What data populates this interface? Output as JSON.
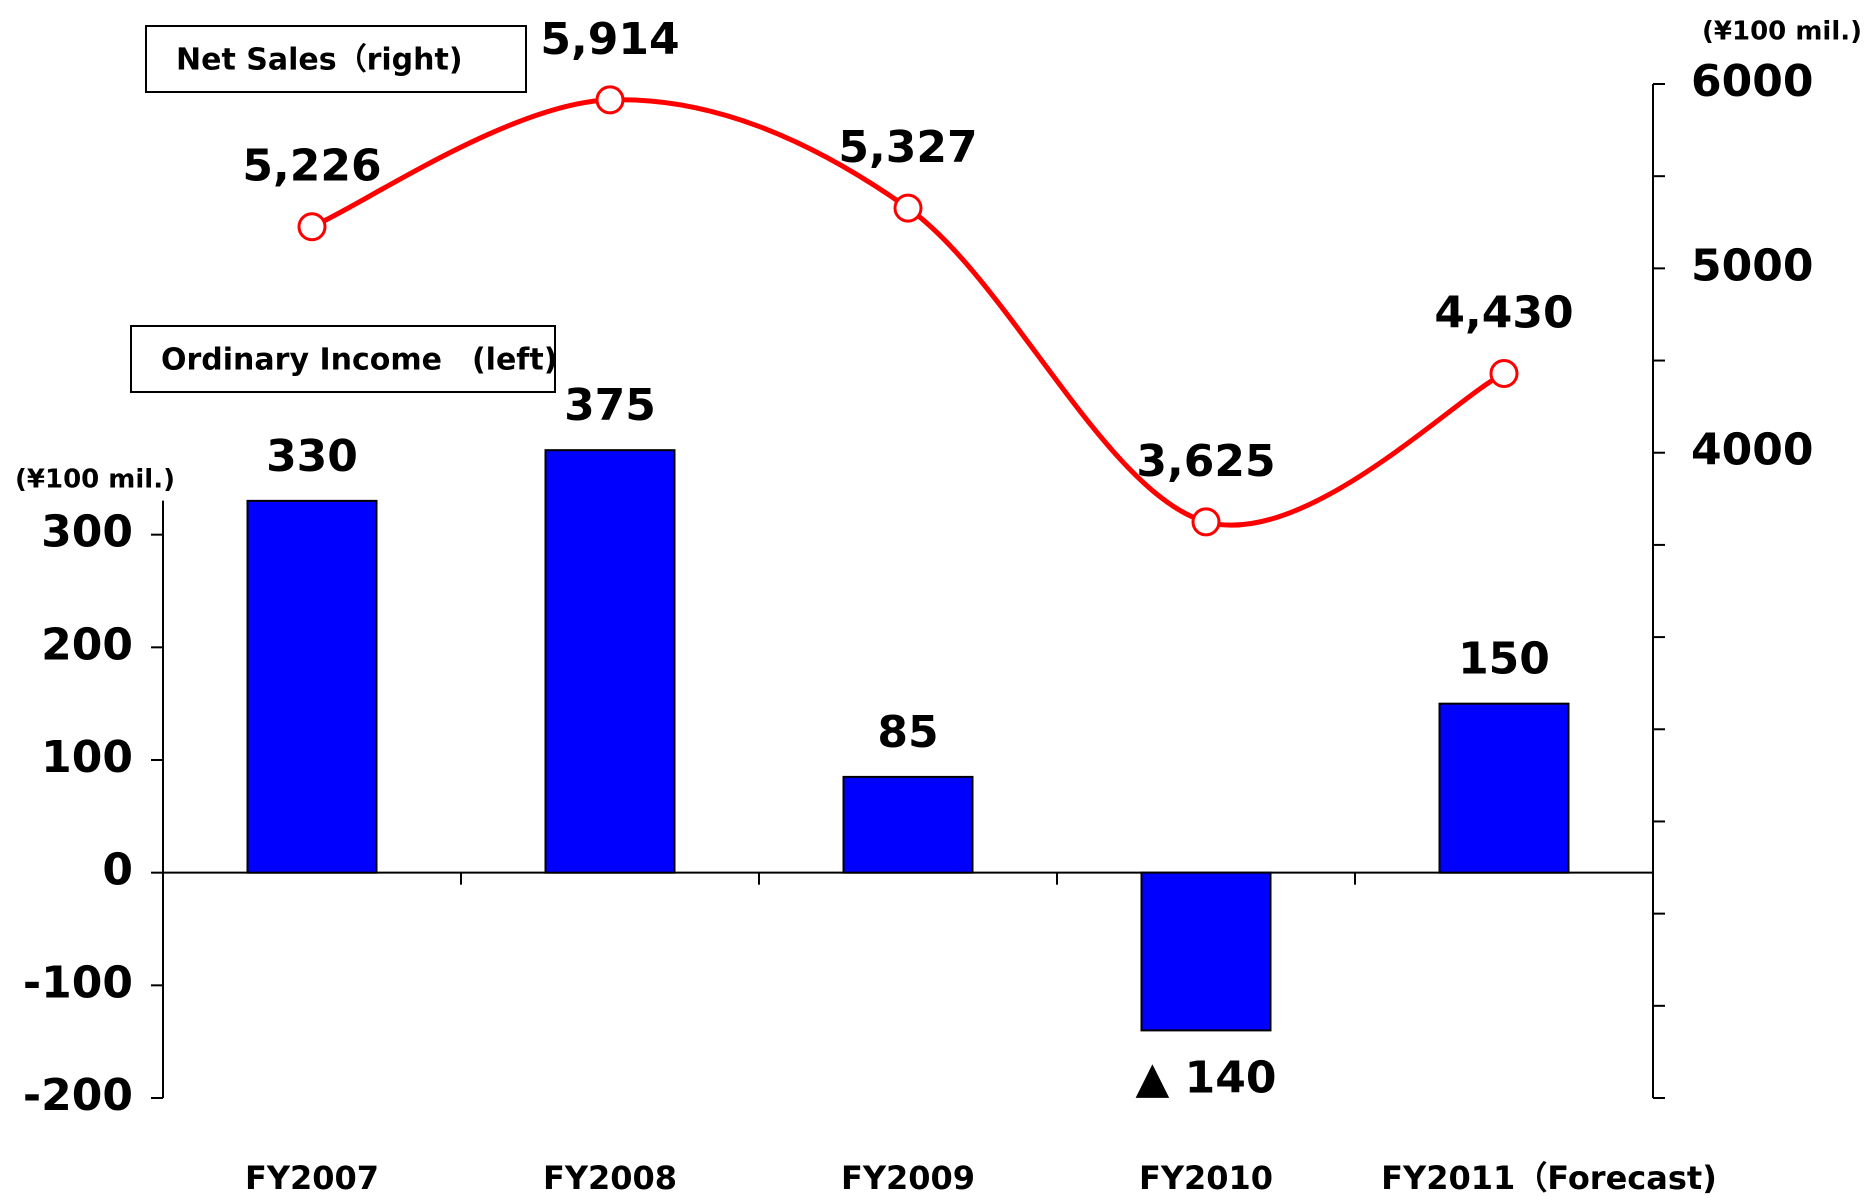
{
  "chart_data": {
    "type": "combo",
    "categories": [
      "FY2007",
      "FY2008",
      "FY2009",
      "FY2010",
      "FY2011（Forecast)"
    ],
    "series": [
      {
        "name": "Net Sales（right)",
        "type": "line",
        "axis": "y2",
        "color": "#ff0000",
        "values": [
          5226,
          5914,
          5327,
          3625,
          4430
        ],
        "value_labels": [
          "5,226",
          "5,914",
          "5,327",
          "3,625",
          "4,430"
        ]
      },
      {
        "name": "Ordinary Income　(left)",
        "type": "bar",
        "color": "#0000ff",
        "values": [
          330,
          375,
          85,
          -140,
          150
        ],
        "value_labels": [
          "330",
          "375",
          "85",
          "▲ 140",
          "150"
        ]
      }
    ],
    "ylim": [
      -200,
      700
    ],
    "yticks": [
      -200,
      -100,
      0,
      100,
      200,
      300
    ],
    "y_unit": "(¥100 mil.)",
    "y2lim": [
      500,
      6000
    ],
    "y2ticks": [
      4000,
      5000,
      6000
    ],
    "y2minor_ticks": [
      500,
      1000,
      1500,
      2000,
      2500,
      3000,
      3500,
      4500,
      5500
    ],
    "y2_unit": "(¥100 mil.)"
  }
}
